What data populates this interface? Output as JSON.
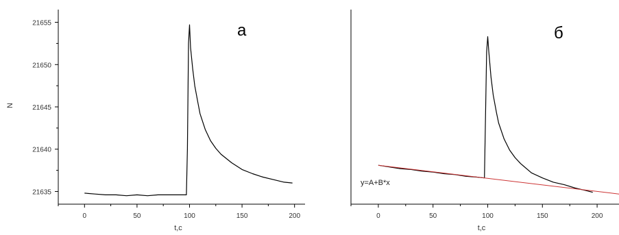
{
  "chart_data": [
    {
      "type": "line",
      "panel_label": "а",
      "xlabel": "t,c",
      "ylabel": "N",
      "xlim": [
        -25,
        210
      ],
      "ylim": [
        21633.5,
        21656.5
      ],
      "x_ticks": [
        0,
        50,
        100,
        150,
        200
      ],
      "y_ticks": [
        21635,
        21640,
        21645,
        21650,
        21655
      ],
      "grid": false,
      "series": [
        {
          "color": "#000000",
          "x": [
            0,
            10,
            20,
            30,
            40,
            50,
            60,
            70,
            80,
            90,
            97,
            98,
            99,
            100,
            101,
            103,
            105,
            108,
            110,
            115,
            120,
            125,
            130,
            140,
            150,
            160,
            170,
            180,
            190,
            198
          ],
          "y": [
            21634.8,
            21634.7,
            21634.6,
            21634.6,
            21634.5,
            21634.6,
            21634.5,
            21634.6,
            21634.6,
            21634.6,
            21634.6,
            21640.0,
            21652.5,
            21654.7,
            21652.0,
            21649.5,
            21647.5,
            21645.5,
            21644.2,
            21642.3,
            21641.0,
            21640.1,
            21639.4,
            21638.4,
            21637.6,
            21637.1,
            21636.7,
            21636.4,
            21636.1,
            21636.0
          ]
        }
      ]
    },
    {
      "type": "line",
      "panel_label": "б",
      "xlabel": "t,c",
      "xlim": [
        -25,
        220
      ],
      "ylim": [
        21633.5,
        21656.5
      ],
      "x_ticks": [
        0,
        50,
        100,
        150,
        200
      ],
      "grid": false,
      "series": [
        {
          "color": "#000000",
          "x": [
            0,
            10,
            20,
            30,
            40,
            50,
            60,
            70,
            80,
            90,
            97,
            98,
            99,
            100,
            101,
            103,
            105,
            108,
            110,
            115,
            120,
            125,
            130,
            140,
            150,
            160,
            170,
            180,
            190,
            196
          ],
          "y": [
            21638.1,
            21637.9,
            21637.7,
            21637.6,
            21637.4,
            21637.3,
            21637.1,
            21637.0,
            21636.8,
            21636.7,
            21636.6,
            21644.0,
            21651.5,
            21653.3,
            21651.5,
            21648.5,
            21646.4,
            21644.3,
            21643.1,
            21641.2,
            21639.9,
            21639.0,
            21638.3,
            21637.2,
            21636.6,
            21636.1,
            21635.8,
            21635.4,
            21635.1,
            21634.9
          ]
        },
        {
          "type": "linear-fit",
          "label": "y=A+B*x",
          "color": "#cc3333",
          "x": [
            0,
            220
          ],
          "y": [
            21638.1,
            21634.7
          ]
        }
      ]
    }
  ]
}
